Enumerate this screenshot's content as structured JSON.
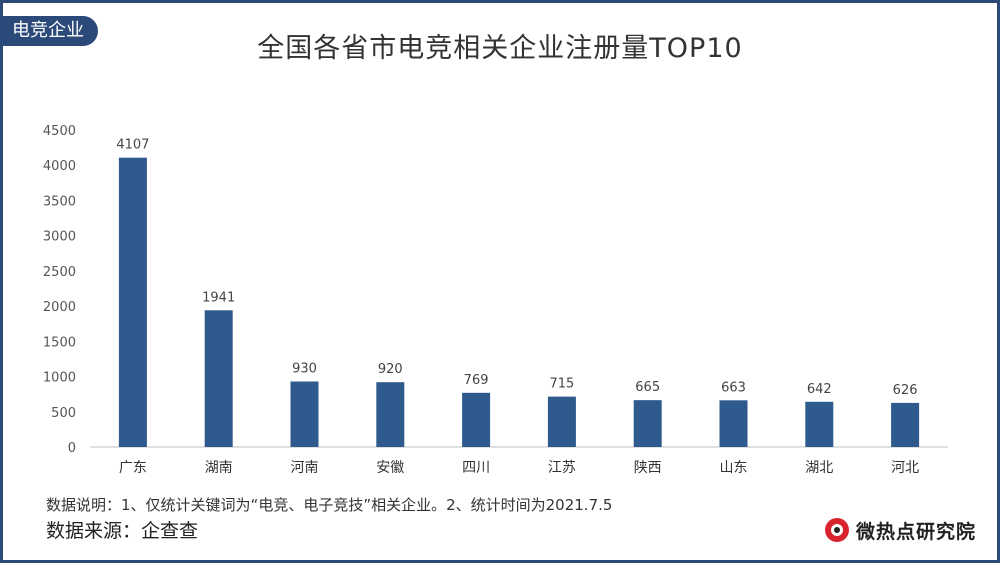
{
  "tag": "电竞企业",
  "title": "全国各省市电竞相关企业注册量TOP10",
  "note": "数据说明：1、仅统计关键词为“电竞、电子竞技”相关企业。2、统计时间为2021.7.5",
  "source": "数据来源：企查查",
  "logo_text": "微热点研究院",
  "colors": {
    "bar": "#2e5a8e",
    "frame": "#2b4a7a",
    "logo_red": "#d9232e"
  },
  "chart_data": {
    "type": "bar",
    "title": "全国各省市电竞相关企业注册量TOP10",
    "categories": [
      "广东",
      "湖南",
      "河南",
      "安徽",
      "四川",
      "江苏",
      "陕西",
      "山东",
      "湖北",
      "河北"
    ],
    "values": [
      4107,
      1941,
      930,
      920,
      769,
      715,
      665,
      663,
      642,
      626
    ],
    "ylim": [
      0,
      4500
    ],
    "yticks": [
      0,
      500,
      1000,
      1500,
      2000,
      2500,
      3000,
      3500,
      4000,
      4500
    ],
    "grid": false,
    "data_labels": true
  }
}
